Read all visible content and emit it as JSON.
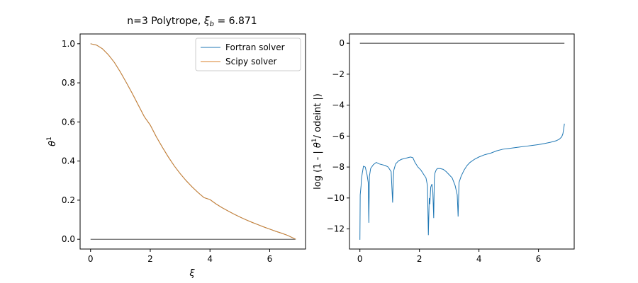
{
  "chart_data": [
    {
      "type": "line",
      "title": "n=3 Polytrope, ξ_b = 6.871",
      "title_main": "n=3 Polytrope, ",
      "title_math": "ξ",
      "title_math_sub": "b",
      "title_math_rest": " = 6.871",
      "xlabel": "ξ",
      "ylabel": "θ",
      "ylabel_sup": "1",
      "xlim": [
        -0.35,
        7.2
      ],
      "ylim": [
        -0.05,
        1.05
      ],
      "xticks": [
        0,
        2,
        4,
        6
      ],
      "yticks": [
        0.0,
        0.2,
        0.4,
        0.6,
        0.8,
        1.0
      ],
      "grid": false,
      "legend_position": "top-right",
      "series": [
        {
          "name": "Fortran solver",
          "color": "#1f77b4",
          "x": [
            0,
            0.2,
            0.4,
            0.6,
            0.8,
            1.0,
            1.2,
            1.4,
            1.6,
            1.8,
            2.0,
            2.2,
            2.4,
            2.6,
            2.8,
            3.0,
            3.2,
            3.4,
            3.6,
            3.8,
            4.0,
            4.2,
            4.4,
            4.6,
            4.8,
            5.0,
            5.2,
            5.4,
            5.6,
            5.8,
            6.0,
            6.2,
            6.4,
            6.6,
            6.871
          ],
          "y": [
            1.0,
            0.993,
            0.974,
            0.943,
            0.904,
            0.855,
            0.801,
            0.745,
            0.686,
            0.627,
            0.584,
            0.525,
            0.472,
            0.422,
            0.376,
            0.336,
            0.3,
            0.268,
            0.239,
            0.213,
            0.203,
            0.181,
            0.162,
            0.145,
            0.129,
            0.114,
            0.1,
            0.087,
            0.075,
            0.063,
            0.052,
            0.041,
            0.031,
            0.02,
            0.0
          ]
        },
        {
          "name": "Scipy solver",
          "color": "#d9822b",
          "x": [
            0,
            0.2,
            0.4,
            0.6,
            0.8,
            1.0,
            1.2,
            1.4,
            1.6,
            1.8,
            2.0,
            2.2,
            2.4,
            2.6,
            2.8,
            3.0,
            3.2,
            3.4,
            3.6,
            3.8,
            4.0,
            4.2,
            4.4,
            4.6,
            4.8,
            5.0,
            5.2,
            5.4,
            5.6,
            5.8,
            6.0,
            6.2,
            6.4,
            6.6,
            6.871
          ],
          "y": [
            1.0,
            0.993,
            0.974,
            0.943,
            0.904,
            0.855,
            0.801,
            0.745,
            0.686,
            0.627,
            0.584,
            0.525,
            0.472,
            0.422,
            0.376,
            0.336,
            0.3,
            0.268,
            0.239,
            0.213,
            0.203,
            0.181,
            0.162,
            0.145,
            0.129,
            0.114,
            0.1,
            0.087,
            0.075,
            0.063,
            0.052,
            0.041,
            0.031,
            0.02,
            0.0
          ]
        }
      ],
      "reference_line": {
        "y": 0,
        "x_range": [
          0,
          6.871
        ],
        "color": "#333333"
      }
    },
    {
      "type": "line",
      "title": "",
      "xlabel": "",
      "ylabel": "log (1 - | θ¹/ odeint |)",
      "ylabel_pre": "log (1 - | ",
      "ylabel_theta": "θ",
      "ylabel_sup": "1",
      "ylabel_post": "/ odeint |)",
      "xlim": [
        -0.35,
        7.2
      ],
      "ylim": [
        -13.3,
        0.6
      ],
      "xticks": [
        0,
        2,
        4,
        6
      ],
      "yticks": [
        0,
        -2,
        -4,
        -6,
        -8,
        -10,
        -12
      ],
      "grid": false,
      "series": [
        {
          "color": "#1f77b4",
          "x": [
            0.0,
            0.01,
            0.02,
            0.04,
            0.05,
            0.08,
            0.12,
            0.18,
            0.24,
            0.28,
            0.3,
            0.32,
            0.36,
            0.45,
            0.55,
            0.65,
            0.75,
            0.85,
            0.95,
            1.05,
            1.1,
            1.12,
            1.14,
            1.2,
            1.3,
            1.4,
            1.5,
            1.6,
            1.7,
            1.78,
            1.85,
            1.95,
            2.05,
            2.15,
            2.22,
            2.27,
            2.3,
            2.33,
            2.35,
            2.38,
            2.42,
            2.45,
            2.48,
            2.5,
            2.52,
            2.56,
            2.6,
            2.7,
            2.8,
            2.9,
            3.0,
            3.1,
            3.2,
            3.27,
            3.3,
            3.33,
            3.4,
            3.5,
            3.6,
            3.7,
            3.85,
            4.0,
            4.2,
            4.4,
            4.6,
            4.8,
            5.0,
            5.2,
            5.4,
            5.6,
            5.8,
            6.0,
            6.2,
            6.4,
            6.6,
            6.7,
            6.78,
            6.82,
            6.85,
            6.871
          ],
          "y": [
            -12.7,
            -9.8,
            -9.6,
            -9.2,
            -8.8,
            -8.4,
            -7.95,
            -8.0,
            -8.5,
            -9.0,
            -11.6,
            -8.6,
            -8.1,
            -7.85,
            -7.7,
            -7.8,
            -7.85,
            -7.9,
            -8.0,
            -8.3,
            -10.3,
            -8.8,
            -8.2,
            -7.8,
            -7.6,
            -7.5,
            -7.45,
            -7.4,
            -7.35,
            -7.4,
            -7.7,
            -8.0,
            -8.2,
            -8.5,
            -8.7,
            -9.2,
            -12.4,
            -10.0,
            -10.4,
            -9.3,
            -9.1,
            -9.6,
            -11.3,
            -8.8,
            -8.4,
            -8.2,
            -8.1,
            -8.1,
            -8.15,
            -8.3,
            -8.5,
            -8.7,
            -9.2,
            -9.8,
            -11.2,
            -9.0,
            -8.6,
            -8.2,
            -7.9,
            -7.7,
            -7.5,
            -7.35,
            -7.2,
            -7.1,
            -6.95,
            -6.85,
            -6.8,
            -6.75,
            -6.7,
            -6.65,
            -6.6,
            -6.55,
            -6.48,
            -6.4,
            -6.3,
            -6.2,
            -6.05,
            -5.85,
            -5.5,
            -5.2
          ]
        }
      ],
      "reference_line": {
        "y": 0,
        "x_range": [
          0,
          6.871
        ],
        "color": "#333333"
      }
    }
  ]
}
